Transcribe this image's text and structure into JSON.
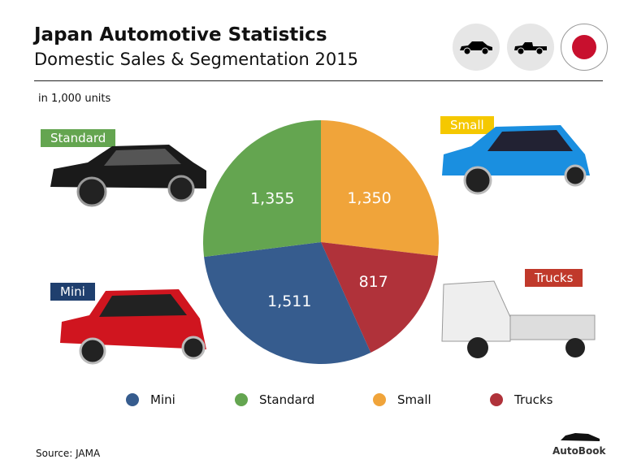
{
  "header": {
    "title": "Japan Automotive Statistics",
    "subtitle": "Domestic Sales & Segmentation 2015",
    "icons": [
      "sedan-icon",
      "pickup-truck-icon",
      "japan-flag-icon"
    ]
  },
  "units_note": "in 1,000 units",
  "source": "Source:  JAMA",
  "brand": "AutoBook",
  "category_tags": {
    "standard": "Standard",
    "small": "Small",
    "mini": "Mini",
    "trucks": "Trucks"
  },
  "chart_data": {
    "type": "pie",
    "categories": [
      "Small",
      "Trucks",
      "Mini",
      "Standard"
    ],
    "values": [
      1350,
      817,
      1511,
      1355
    ],
    "labels": [
      "1,350",
      "817",
      "1,511",
      "1,355"
    ],
    "colors": [
      "#f0a43a",
      "#b0323a",
      "#365c8e",
      "#64a550"
    ],
    "legend": [
      {
        "name": "Mini",
        "color": "#365c8e"
      },
      {
        "name": "Standard",
        "color": "#64a550"
      },
      {
        "name": "Small",
        "color": "#f0a43a"
      },
      {
        "name": "Trucks",
        "color": "#b0323a"
      }
    ],
    "legend_position": "bottom"
  }
}
